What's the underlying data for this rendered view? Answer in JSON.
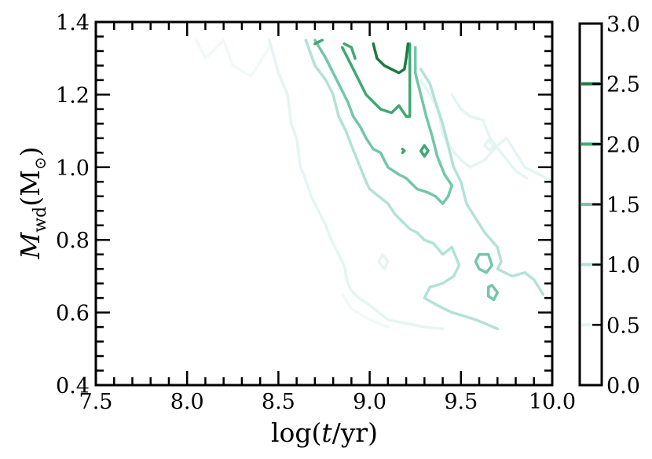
{
  "chart_data": {
    "type": "contour",
    "xlabel": {
      "pre": "log(",
      "italic": "t",
      "post": "/yr)"
    },
    "ylabel": {
      "main": "M",
      "sub": "wd",
      "unit": "(M",
      "unit_sub": "⊙",
      "close": ")"
    },
    "xlim": [
      7.5,
      10.0
    ],
    "ylim": [
      0.4,
      1.4
    ],
    "xticks": [
      "7.5",
      "8.0",
      "8.5",
      "9.0",
      "9.5",
      "10.0"
    ],
    "xtick_values": [
      7.5,
      8.0,
      8.5,
      9.0,
      9.5,
      10.0
    ],
    "yticks": [
      "0.4",
      "0.6",
      "0.8",
      "1.0",
      "1.2",
      "1.4"
    ],
    "ytick_values": [
      0.4,
      0.6,
      0.8,
      1.0,
      1.2,
      1.4
    ],
    "colorbar": {
      "range": [
        0.0,
        3.0
      ],
      "ticks": [
        "0.0",
        "0.5",
        "1.0",
        "1.5",
        "2.0",
        "2.5",
        "3.0"
      ],
      "tick_values": [
        0.0,
        0.5,
        1.0,
        1.5,
        2.0,
        2.5,
        3.0
      ],
      "level_colors": [
        {
          "level": 0.5,
          "color": "#e5f5f3"
        },
        {
          "level": 1.0,
          "color": "#b2e2d6"
        },
        {
          "level": 1.5,
          "color": "#72c7a8"
        },
        {
          "level": 2.0,
          "color": "#3fa873"
        },
        {
          "level": 2.5,
          "color": "#1a7b41"
        }
      ]
    },
    "contours": [
      {
        "level": 0.25,
        "color": "#f1f9f7",
        "points": [
          [
            8.05,
            1.35
          ],
          [
            8.1,
            1.3
          ],
          [
            8.2,
            1.35
          ],
          [
            8.25,
            1.28
          ],
          [
            8.35,
            1.25
          ],
          [
            8.45,
            1.33
          ]
        ]
      },
      {
        "level": 0.25,
        "color": "#f1f9f7",
        "points": [
          [
            8.85,
            0.65
          ],
          [
            8.9,
            0.61
          ],
          [
            9.0,
            0.58
          ],
          [
            9.1,
            0.56
          ]
        ]
      },
      {
        "level": 0.5,
        "color": "#e5f5f3",
        "points": [
          [
            8.45,
            1.35
          ],
          [
            8.5,
            1.26
          ],
          [
            8.55,
            1.2
          ],
          [
            8.57,
            1.12
          ],
          [
            8.6,
            1.08
          ],
          [
            8.62,
            1.0
          ],
          [
            8.64,
            0.98
          ],
          [
            8.68,
            0.92
          ],
          [
            8.72,
            0.88
          ],
          [
            8.76,
            0.84
          ],
          [
            8.79,
            0.8
          ],
          [
            8.82,
            0.77
          ],
          [
            8.86,
            0.73
          ],
          [
            8.88,
            0.68
          ],
          [
            8.9,
            0.66
          ],
          [
            8.94,
            0.64
          ],
          [
            9.0,
            0.62
          ],
          [
            9.05,
            0.6
          ],
          [
            9.1,
            0.58
          ],
          [
            9.2,
            0.57
          ],
          [
            9.3,
            0.56
          ],
          [
            9.4,
            0.555
          ]
        ]
      },
      {
        "level": 0.5,
        "color": "#e5f5f3",
        "points": [
          [
            9.28,
            1.24
          ],
          [
            9.33,
            1.2
          ],
          [
            9.38,
            1.15
          ],
          [
            9.4,
            1.09
          ],
          [
            9.45,
            1.05
          ],
          [
            9.5,
            1.02
          ],
          [
            9.55,
            1.0
          ],
          [
            9.63,
            1.02
          ],
          [
            9.7,
            1.06
          ],
          [
            9.75,
            1.08
          ],
          [
            9.8,
            1.04
          ],
          [
            9.85,
            1.0
          ],
          [
            9.93,
            0.98
          ],
          [
            10.0,
            0.96
          ]
        ]
      },
      {
        "level": 0.5,
        "color": "#e5f5f3",
        "points": [
          [
            9.45,
            1.2
          ],
          [
            9.5,
            1.16
          ],
          [
            9.55,
            1.14
          ],
          [
            9.62,
            1.13
          ],
          [
            9.66,
            1.08
          ],
          [
            9.72,
            1.04
          ],
          [
            9.8,
            0.99
          ],
          [
            9.86,
            0.97
          ]
        ]
      },
      {
        "level": 0.5,
        "color": "#e5f5f3",
        "points": [
          [
            9.65,
            1.075
          ],
          [
            9.68,
            1.06
          ],
          [
            9.66,
            1.045
          ],
          [
            9.63,
            1.06
          ],
          [
            9.65,
            1.075
          ]
        ]
      },
      {
        "level": 0.5,
        "color": "#e5f5f3",
        "points": [
          [
            9.07,
            0.76
          ],
          [
            9.1,
            0.74
          ],
          [
            9.08,
            0.72
          ],
          [
            9.05,
            0.74
          ],
          [
            9.07,
            0.76
          ]
        ]
      },
      {
        "level": 1.0,
        "color": "#b2e2d6",
        "points": [
          [
            8.65,
            1.35
          ],
          [
            8.7,
            1.28
          ],
          [
            8.76,
            1.24
          ],
          [
            8.8,
            1.2
          ],
          [
            8.83,
            1.14
          ],
          [
            8.87,
            1.1
          ],
          [
            8.9,
            1.06
          ],
          [
            8.94,
            1.01
          ],
          [
            8.98,
            0.96
          ],
          [
            9.0,
            0.94
          ],
          [
            9.05,
            0.92
          ],
          [
            9.1,
            0.9
          ],
          [
            9.14,
            0.87
          ],
          [
            9.18,
            0.85
          ],
          [
            9.22,
            0.83
          ],
          [
            9.26,
            0.82
          ],
          [
            9.3,
            0.8
          ],
          [
            9.35,
            0.79
          ],
          [
            9.4,
            0.76
          ],
          [
            9.45,
            0.78
          ],
          [
            9.49,
            0.73
          ],
          [
            9.46,
            0.7
          ],
          [
            9.4,
            0.68
          ],
          [
            9.33,
            0.67
          ],
          [
            9.3,
            0.64
          ],
          [
            9.37,
            0.62
          ],
          [
            9.45,
            0.6
          ],
          [
            9.52,
            0.59
          ],
          [
            9.58,
            0.58
          ],
          [
            9.63,
            0.57
          ],
          [
            9.7,
            0.555
          ]
        ]
      },
      {
        "level": 1.0,
        "color": "#b2e2d6",
        "points": [
          [
            9.28,
            1.27
          ],
          [
            9.33,
            1.23
          ],
          [
            9.36,
            1.18
          ],
          [
            9.4,
            1.12
          ],
          [
            9.43,
            1.06
          ],
          [
            9.46,
            1.0
          ],
          [
            9.5,
            0.96
          ],
          [
            9.53,
            0.9
          ],
          [
            9.58,
            0.86
          ],
          [
            9.63,
            0.82
          ],
          [
            9.7,
            0.78
          ],
          [
            9.72,
            0.74
          ],
          [
            9.7,
            0.72
          ],
          [
            9.78,
            0.7
          ],
          [
            9.85,
            0.71
          ],
          [
            9.9,
            0.69
          ],
          [
            9.95,
            0.65
          ]
        ]
      },
      {
        "level": 1.5,
        "color": "#72c7a8",
        "points": [
          [
            8.7,
            1.35
          ],
          [
            8.76,
            1.3
          ],
          [
            8.8,
            1.26
          ],
          [
            8.84,
            1.22
          ],
          [
            8.88,
            1.18
          ],
          [
            8.91,
            1.14
          ],
          [
            8.95,
            1.11
          ],
          [
            8.98,
            1.08
          ],
          [
            9.02,
            1.05
          ],
          [
            9.06,
            1.04
          ],
          [
            9.1,
            1.0
          ],
          [
            9.16,
            0.98
          ],
          [
            9.2,
            0.97
          ],
          [
            9.26,
            0.94
          ],
          [
            9.32,
            0.93
          ],
          [
            9.36,
            0.92
          ],
          [
            9.4,
            0.9
          ],
          [
            9.43,
            0.92
          ],
          [
            9.45,
            0.95
          ],
          [
            9.41,
            0.98
          ],
          [
            9.37,
            1.03
          ],
          [
            9.34,
            1.09
          ],
          [
            9.31,
            1.14
          ],
          [
            9.29,
            1.18
          ],
          [
            9.27,
            1.22
          ],
          [
            9.25,
            1.26
          ],
          [
            9.25,
            1.33
          ]
        ]
      },
      {
        "level": 1.5,
        "color": "#72c7a8",
        "points": [
          [
            9.6,
            0.76
          ],
          [
            9.65,
            0.76
          ],
          [
            9.67,
            0.73
          ],
          [
            9.64,
            0.71
          ],
          [
            9.6,
            0.72
          ],
          [
            9.58,
            0.74
          ],
          [
            9.6,
            0.76
          ]
        ]
      },
      {
        "level": 1.5,
        "color": "#72c7a8",
        "points": [
          [
            9.67,
            0.675
          ],
          [
            9.7,
            0.655
          ],
          [
            9.68,
            0.635
          ],
          [
            9.65,
            0.645
          ],
          [
            9.65,
            0.67
          ],
          [
            9.67,
            0.675
          ]
        ]
      },
      {
        "level": 2.0,
        "color": "#3fa873",
        "points": [
          [
            8.85,
            1.33
          ],
          [
            8.9,
            1.28
          ],
          [
            8.94,
            1.24
          ],
          [
            8.98,
            1.2
          ],
          [
            9.02,
            1.18
          ],
          [
            9.06,
            1.16
          ],
          [
            9.12,
            1.15
          ],
          [
            9.16,
            1.17
          ],
          [
            9.2,
            1.14
          ],
          [
            9.22,
            1.14
          ],
          [
            9.22,
            1.2
          ],
          [
            9.22,
            1.26
          ],
          [
            9.22,
            1.34
          ]
        ]
      },
      {
        "level": 2.0,
        "color": "#3fa873",
        "points": [
          [
            9.3,
            1.06
          ],
          [
            9.32,
            1.045
          ],
          [
            9.3,
            1.03
          ],
          [
            9.28,
            1.045
          ],
          [
            9.3,
            1.06
          ]
        ]
      },
      {
        "level": 2.0,
        "color": "#3fa873",
        "points": [
          [
            9.18,
            1.05
          ],
          [
            9.19,
            1.045
          ],
          [
            9.18,
            1.04
          ]
        ]
      },
      {
        "level": 2.0,
        "color": "#3fa873",
        "points": [
          [
            8.7,
            1.34
          ],
          [
            8.74,
            1.35
          ]
        ]
      },
      {
        "level": 2.0,
        "color": "#3fa873",
        "points": [
          [
            8.86,
            1.34
          ],
          [
            8.9,
            1.33
          ],
          [
            8.92,
            1.3
          ]
        ]
      },
      {
        "level": 2.5,
        "color": "#1a7b41",
        "points": [
          [
            9.02,
            1.34
          ],
          [
            9.04,
            1.3
          ],
          [
            9.08,
            1.28
          ],
          [
            9.12,
            1.27
          ],
          [
            9.16,
            1.26
          ],
          [
            9.19,
            1.27
          ],
          [
            9.2,
            1.3
          ],
          [
            9.21,
            1.34
          ]
        ]
      }
    ]
  }
}
